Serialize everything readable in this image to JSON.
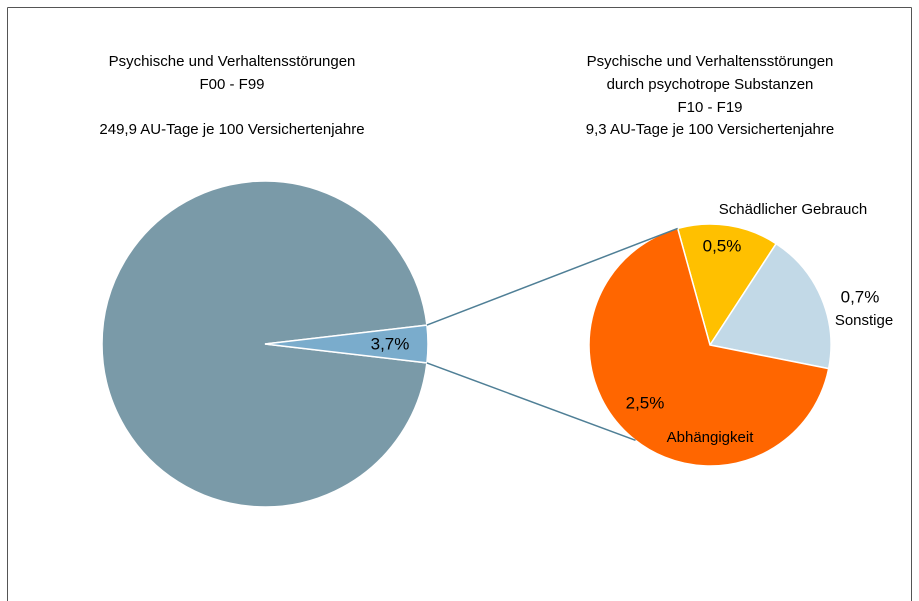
{
  "chart_data": [
    {
      "type": "pie",
      "title_lines": [
        "Psychische und Verhaltensstörungen",
        "F00 - F99",
        "249,9 AU-Tage  je 100 Versichertenjahre"
      ],
      "values": [
        96.3,
        3.7
      ],
      "value_labels": [
        null,
        "3,7%"
      ],
      "colors": [
        "#7a9aa8",
        "#7aaccc"
      ]
    },
    {
      "type": "pie",
      "title_lines": [
        "Psychische und Verhaltensstörungen",
        "durch psychotrope Substanzen",
        "F10 - F19",
        "9,3 AU-Tage  je 100 Versichertenjahre"
      ],
      "categories": [
        "Schädlicher Gebrauch",
        "Sonstige",
        "Abhängigkeit"
      ],
      "values": [
        0.5,
        0.7,
        2.5
      ],
      "value_labels": [
        "0,5%",
        "0,7%",
        "2,5%"
      ],
      "colors": [
        "#ffc000",
        "#c2d9e7",
        "#ff6600"
      ]
    }
  ]
}
